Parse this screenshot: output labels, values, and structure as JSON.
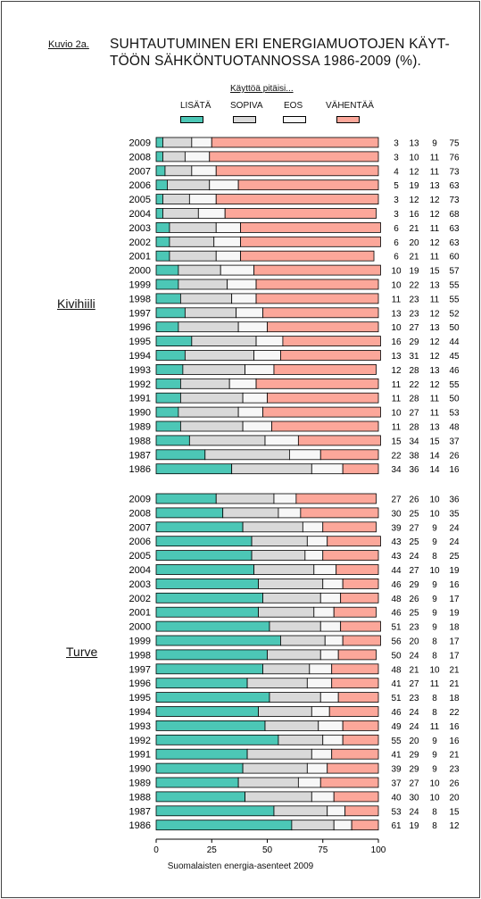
{
  "figure_label": "Kuvio 2a.",
  "title_line1": "SUHTAUTUMINEN ERI ENERGIAMUOTOJEN KÄYT-",
  "title_line2": "TÖÖN SÄHKÖNTUOTANNOSSA 1986-2009 (%).",
  "legend_title": "Käyttöä pitäisi...",
  "footer": "Suomalaisten energia-asenteet 2009",
  "colors": {
    "lisata": "#4cc7b6",
    "sopiva": "#d9d9d9",
    "eos": "#f7f7f7",
    "vahentaa": "#fca79a"
  },
  "chart_data": {
    "type": "bar",
    "orientation": "horizontal",
    "stacked": true,
    "title": "SUHTAUTUMINEN ERI ENERGIAMUOTOJEN KÄYTTÖÖN SÄHKÖNTUOTANNOSSA 1986-2009 (%).",
    "xlim": [
      0,
      100
    ],
    "x_ticks": [
      "0",
      "25",
      "50",
      "75",
      "100"
    ],
    "legend": [
      "LISÄTÄ",
      "SOPIVA",
      "EOS",
      "VÄHENTÄÄ"
    ],
    "legend_placement": "top",
    "groups": [
      {
        "name": "Kivihiili",
        "categories": [
          "2009",
          "2008",
          "2007",
          "2006",
          "2005",
          "2004",
          "2003",
          "2002",
          "2001",
          "2000",
          "1999",
          "1998",
          "1997",
          "1996",
          "1995",
          "1994",
          "1993",
          "1992",
          "1991",
          "1990",
          "1989",
          "1988",
          "1987",
          "1986"
        ],
        "series": [
          {
            "name": "LISÄTÄ",
            "values": [
              3,
              3,
              4,
              5,
              3,
              3,
              6,
              6,
              6,
              10,
              10,
              11,
              13,
              10,
              16,
              13,
              12,
              11,
              11,
              10,
              11,
              15,
              22,
              34
            ]
          },
          {
            "name": "SOPIVA",
            "values": [
              13,
              10,
              12,
              19,
              12,
              16,
              21,
              20,
              21,
              19,
              22,
              23,
              23,
              27,
              29,
              31,
              28,
              22,
              28,
              27,
              28,
              34,
              38,
              36
            ]
          },
          {
            "name": "EOS",
            "values": [
              9,
              11,
              11,
              13,
              12,
              12,
              11,
              12,
              11,
              15,
              13,
              11,
              12,
              13,
              12,
              12,
              13,
              12,
              11,
              11,
              13,
              15,
              14,
              14
            ]
          },
          {
            "name": "VÄHENTÄÄ",
            "values": [
              75,
              76,
              73,
              63,
              73,
              68,
              63,
              63,
              60,
              57,
              55,
              55,
              52,
              50,
              44,
              45,
              46,
              55,
              50,
              53,
              48,
              37,
              26,
              16
            ]
          }
        ]
      },
      {
        "name": "Turve",
        "categories": [
          "2009",
          "2008",
          "2007",
          "2006",
          "2005",
          "2004",
          "2003",
          "2002",
          "2001",
          "2000",
          "1999",
          "1998",
          "1997",
          "1996",
          "1995",
          "1994",
          "1993",
          "1992",
          "1991",
          "1990",
          "1989",
          "1988",
          "1987",
          "1986"
        ],
        "series": [
          {
            "name": "LISÄTÄ",
            "values": [
              27,
              30,
              39,
              43,
              43,
              44,
              46,
              48,
              46,
              51,
              56,
              50,
              48,
              41,
              51,
              46,
              49,
              55,
              41,
              39,
              37,
              40,
              53,
              61
            ]
          },
          {
            "name": "SOPIVA",
            "values": [
              26,
              25,
              27,
              25,
              24,
              27,
              29,
              26,
              25,
              23,
              20,
              24,
              21,
              27,
              23,
              24,
              24,
              20,
              29,
              29,
              27,
              30,
              24,
              19
            ]
          },
          {
            "name": "EOS",
            "values": [
              10,
              10,
              9,
              9,
              8,
              10,
              9,
              9,
              9,
              9,
              8,
              8,
              10,
              11,
              8,
              8,
              11,
              9,
              9,
              9,
              10,
              10,
              8,
              8
            ]
          },
          {
            "name": "VÄHENTÄÄ",
            "values": [
              36,
              35,
              24,
              24,
              25,
              19,
              16,
              17,
              19,
              18,
              17,
              17,
              21,
              21,
              18,
              22,
              16,
              16,
              21,
              23,
              26,
              20,
              15,
              12
            ]
          }
        ]
      }
    ]
  }
}
